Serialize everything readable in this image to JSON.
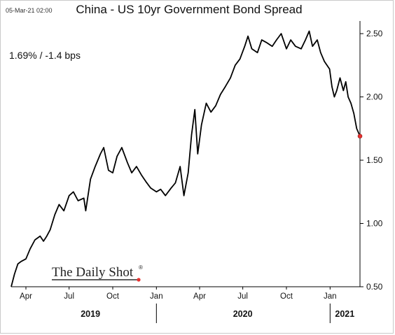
{
  "header": {
    "timestamp": "05-Mar-21 02:00",
    "title": "China - US 10yr Government Bond Spread"
  },
  "annotation": {
    "text": "1.69%  /  -1.4 bps"
  },
  "brand": {
    "text": "The Daily Shot",
    "mark": "®"
  },
  "colors": {
    "line": "#000000",
    "last_point": "#e8312f",
    "axis": "#000000"
  },
  "chart_data": {
    "type": "line",
    "title": "China - US 10yr Government Bond Spread",
    "xlabel": "",
    "ylabel": "",
    "y_axis_side": "right",
    "ylim": [
      0.5,
      2.6
    ],
    "yticks": [
      0.5,
      1.0,
      1.5,
      2.0,
      2.5
    ],
    "ytick_labels": [
      "0.50",
      "1.00",
      "1.50",
      "2.00",
      "2.50"
    ],
    "xlim": [
      "2019-03-01",
      "2021-03-05"
    ],
    "x_ticks": [
      {
        "date": "2019-04-01",
        "label": "Apr"
      },
      {
        "date": "2019-07-01",
        "label": "Jul"
      },
      {
        "date": "2019-10-01",
        "label": "Oct"
      },
      {
        "date": "2020-01-01",
        "label": "Jan"
      },
      {
        "date": "2020-04-01",
        "label": "Apr"
      },
      {
        "date": "2020-07-01",
        "label": "Jul"
      },
      {
        "date": "2020-10-01",
        "label": "Oct"
      },
      {
        "date": "2021-01-01",
        "label": "Jan"
      }
    ],
    "year_labels": [
      {
        "label": "2019",
        "date": "2019-08-15"
      },
      {
        "label": "2020",
        "date": "2020-07-01"
      },
      {
        "label": "2021",
        "date": "2021-02-01"
      }
    ],
    "year_separators": [
      "2020-01-01",
      "2021-01-01"
    ],
    "grid": false,
    "legend": "none",
    "series": [
      {
        "points": [
          [
            "2019-03-01",
            0.5
          ],
          [
            "2019-03-08",
            0.6
          ],
          [
            "2019-03-15",
            0.68
          ],
          [
            "2019-03-22",
            0.7
          ],
          [
            "2019-04-01",
            0.72
          ],
          [
            "2019-04-10",
            0.8
          ],
          [
            "2019-04-20",
            0.87
          ],
          [
            "2019-05-01",
            0.9
          ],
          [
            "2019-05-08",
            0.86
          ],
          [
            "2019-05-15",
            0.9
          ],
          [
            "2019-05-22",
            0.95
          ],
          [
            "2019-06-01",
            1.07
          ],
          [
            "2019-06-10",
            1.15
          ],
          [
            "2019-06-20",
            1.1
          ],
          [
            "2019-07-01",
            1.22
          ],
          [
            "2019-07-10",
            1.25
          ],
          [
            "2019-07-20",
            1.18
          ],
          [
            "2019-08-01",
            1.2
          ],
          [
            "2019-08-05",
            1.1
          ],
          [
            "2019-08-15",
            1.35
          ],
          [
            "2019-08-25",
            1.45
          ],
          [
            "2019-09-05",
            1.55
          ],
          [
            "2019-09-12",
            1.6
          ],
          [
            "2019-09-22",
            1.42
          ],
          [
            "2019-10-01",
            1.4
          ],
          [
            "2019-10-10",
            1.53
          ],
          [
            "2019-10-20",
            1.6
          ],
          [
            "2019-11-01",
            1.48
          ],
          [
            "2019-11-10",
            1.4
          ],
          [
            "2019-11-20",
            1.45
          ],
          [
            "2019-12-01",
            1.38
          ],
          [
            "2019-12-10",
            1.33
          ],
          [
            "2019-12-20",
            1.28
          ],
          [
            "2020-01-01",
            1.25
          ],
          [
            "2020-01-10",
            1.27
          ],
          [
            "2020-01-20",
            1.22
          ],
          [
            "2020-02-01",
            1.28
          ],
          [
            "2020-02-10",
            1.32
          ],
          [
            "2020-02-20",
            1.45
          ],
          [
            "2020-02-28",
            1.22
          ],
          [
            "2020-03-08",
            1.4
          ],
          [
            "2020-03-15",
            1.7
          ],
          [
            "2020-03-22",
            1.9
          ],
          [
            "2020-03-28",
            1.55
          ],
          [
            "2020-04-05",
            1.78
          ],
          [
            "2020-04-15",
            1.95
          ],
          [
            "2020-04-25",
            1.88
          ],
          [
            "2020-05-05",
            1.93
          ],
          [
            "2020-05-15",
            2.02
          ],
          [
            "2020-05-25",
            2.08
          ],
          [
            "2020-06-05",
            2.15
          ],
          [
            "2020-06-15",
            2.25
          ],
          [
            "2020-06-25",
            2.3
          ],
          [
            "2020-07-05",
            2.4
          ],
          [
            "2020-07-12",
            2.48
          ],
          [
            "2020-07-20",
            2.38
          ],
          [
            "2020-08-01",
            2.35
          ],
          [
            "2020-08-10",
            2.45
          ],
          [
            "2020-08-20",
            2.43
          ],
          [
            "2020-09-01",
            2.4
          ],
          [
            "2020-09-10",
            2.45
          ],
          [
            "2020-09-20",
            2.5
          ],
          [
            "2020-10-01",
            2.38
          ],
          [
            "2020-10-10",
            2.45
          ],
          [
            "2020-10-20",
            2.4
          ],
          [
            "2020-11-01",
            2.38
          ],
          [
            "2020-11-10",
            2.45
          ],
          [
            "2020-11-18",
            2.52
          ],
          [
            "2020-11-25",
            2.4
          ],
          [
            "2020-12-05",
            2.45
          ],
          [
            "2020-12-12",
            2.35
          ],
          [
            "2020-12-20",
            2.28
          ],
          [
            "2020-12-31",
            2.22
          ],
          [
            "2021-01-05",
            2.08
          ],
          [
            "2021-01-10",
            2.0
          ],
          [
            "2021-01-15",
            2.05
          ],
          [
            "2021-01-22",
            2.15
          ],
          [
            "2021-01-29",
            2.05
          ],
          [
            "2021-02-03",
            2.12
          ],
          [
            "2021-02-08",
            2.0
          ],
          [
            "2021-02-14",
            1.95
          ],
          [
            "2021-02-20",
            1.87
          ],
          [
            "2021-02-26",
            1.75
          ],
          [
            "2021-03-05",
            1.69
          ]
        ]
      }
    ],
    "last_value": {
      "date": "2021-03-05",
      "value": 1.69
    }
  }
}
